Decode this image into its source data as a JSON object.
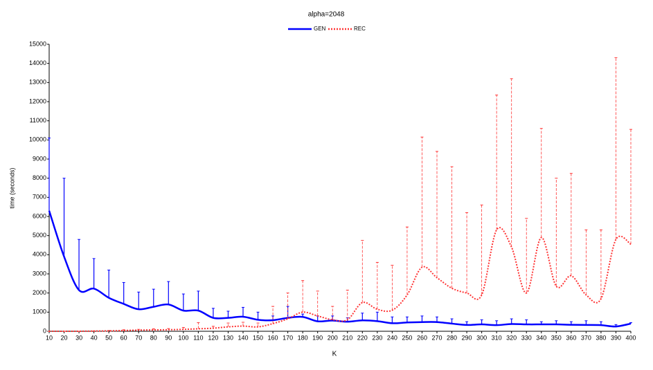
{
  "chart_data": {
    "type": "line",
    "title": "alpha=2048",
    "x_label": "K",
    "y_label": "time (seconds)",
    "x": [
      10,
      20,
      30,
      40,
      50,
      60,
      70,
      80,
      90,
      100,
      110,
      120,
      130,
      140,
      150,
      160,
      170,
      180,
      190,
      200,
      210,
      220,
      230,
      240,
      250,
      260,
      270,
      280,
      290,
      300,
      310,
      320,
      330,
      340,
      350,
      360,
      370,
      380,
      390,
      400
    ],
    "series": [
      {
        "name": "GEN",
        "color": "#0000ff",
        "style": "solid",
        "error_style": "solid",
        "values": [
          6300,
          3900,
          2150,
          2230,
          1750,
          1430,
          1150,
          1280,
          1400,
          1080,
          1080,
          700,
          700,
          760,
          600,
          580,
          700,
          750,
          520,
          560,
          500,
          570,
          530,
          420,
          460,
          480,
          480,
          400,
          330,
          360,
          320,
          380,
          360,
          360,
          360,
          340,
          330,
          320,
          250,
          400
        ],
        "errors": [
          3800,
          4100,
          2650,
          1570,
          1450,
          1120,
          900,
          920,
          1200,
          870,
          1020,
          500,
          350,
          490,
          400,
          220,
          600,
          150,
          280,
          240,
          200,
          380,
          470,
          330,
          290,
          320,
          270,
          250,
          170,
          240,
          230,
          270,
          240,
          140,
          190,
          160,
          220,
          180,
          100,
          50
        ]
      },
      {
        "name": "REC",
        "color": "#ff3333",
        "style": "dotted",
        "error_style": "dashed",
        "values": [
          0,
          0,
          0,
          10,
          20,
          40,
          60,
          70,
          80,
          100,
          130,
          160,
          230,
          270,
          230,
          400,
          650,
          1000,
          800,
          600,
          600,
          1500,
          1150,
          1100,
          1900,
          3350,
          2800,
          2250,
          2000,
          1900,
          5300,
          4400,
          2000,
          4900,
          2350,
          2900,
          1900,
          1700,
          4800,
          4550
        ],
        "errors": [
          0,
          0,
          0,
          10,
          20,
          40,
          40,
          60,
          60,
          100,
          320,
          100,
          200,
          200,
          200,
          900,
          1350,
          1650,
          1300,
          700,
          1550,
          3250,
          2450,
          2350,
          3550,
          6800,
          6600,
          6350,
          4200,
          4700,
          7050,
          8800,
          3900,
          5700,
          5650,
          5350,
          3400,
          3600,
          9500,
          6000
        ]
      }
    ],
    "xlim": [
      10,
      400
    ],
    "ylim": [
      0,
      15000
    ],
    "xticks": [
      10,
      20,
      30,
      40,
      50,
      60,
      70,
      80,
      90,
      100,
      110,
      120,
      130,
      140,
      150,
      160,
      170,
      180,
      190,
      200,
      210,
      220,
      230,
      240,
      250,
      260,
      270,
      280,
      290,
      300,
      310,
      320,
      330,
      340,
      350,
      360,
      370,
      380,
      390,
      400
    ],
    "yticks": [
      0,
      1000,
      2000,
      3000,
      4000,
      5000,
      6000,
      7000,
      8000,
      9000,
      10000,
      11000,
      12000,
      13000,
      14000,
      15000
    ],
    "grid": false,
    "legend": "top"
  }
}
